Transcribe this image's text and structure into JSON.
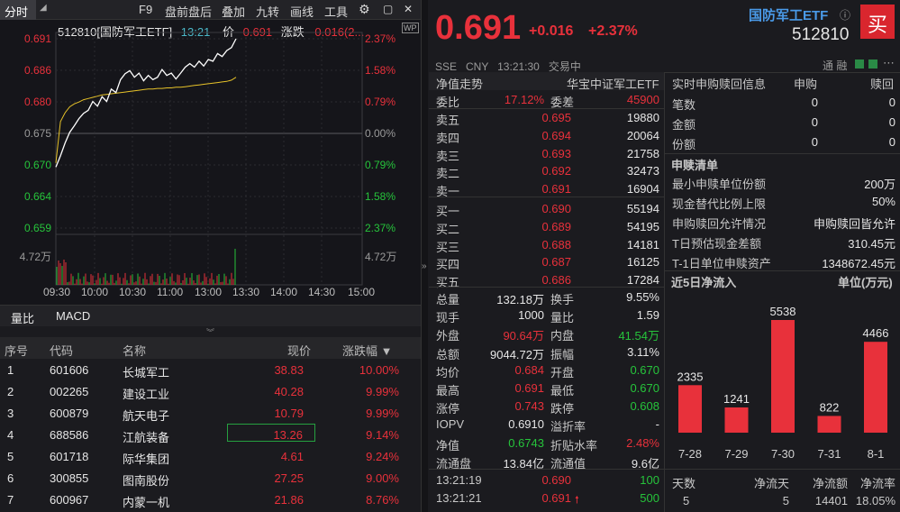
{
  "toolbar": {
    "tab": "分时",
    "f9": "F9",
    "pre_after": "盘前盘后",
    "overlay": "叠加",
    "jiuzhuan": "九转",
    "draw": "画线",
    "tools": "工具"
  },
  "chart": {
    "title": "512810[国防军工ETF]",
    "time": "13:21",
    "price_label": "价",
    "price": "0.691",
    "chg_label": "涨跌",
    "chg": "0.016(2...",
    "y_left": [
      "0.691",
      "0.686",
      "0.680",
      "0.675",
      "0.670",
      "0.664",
      "0.659"
    ],
    "y_right": [
      "2.37%",
      "1.58%",
      "0.79%",
      "0.00%",
      "0.79%",
      "1.58%",
      "2.37%"
    ],
    "vol_left": "4.72万",
    "vol_right": "4.72万",
    "x_ticks": [
      "09:30",
      "10:00",
      "10:30",
      "11:00",
      "13:00",
      "13:30",
      "14:00",
      "14:30",
      "15:00"
    ],
    "price_series": [
      0.6693,
      0.6712,
      0.6734,
      0.6752,
      0.6763,
      0.6775,
      0.6784,
      0.6789,
      0.6804,
      0.6796,
      0.6812,
      0.6804,
      0.6825,
      0.6819,
      0.6841,
      0.6851,
      0.6856,
      0.6845,
      0.6852,
      0.6839,
      0.6848,
      0.6841,
      0.6845,
      0.6858,
      0.6848,
      0.6852,
      0.6842,
      0.6852,
      0.6862,
      0.6868,
      0.6862,
      0.6872,
      0.6864,
      0.6875,
      0.6872,
      0.6885,
      0.688,
      0.689,
      0.6895,
      0.691
    ],
    "avg_series": [
      0.67,
      0.677,
      0.6785,
      0.6795,
      0.68,
      0.6803,
      0.6807,
      0.6809,
      0.6811,
      0.6813,
      0.6815,
      0.6816,
      0.6817,
      0.6818,
      0.6819,
      0.682,
      0.6821,
      0.6822,
      0.6823,
      0.6824,
      0.6825,
      0.6825,
      0.6826,
      0.6826,
      0.6827,
      0.6827,
      0.6828,
      0.6828,
      0.6829,
      0.683,
      0.6831,
      0.6832,
      0.6833,
      0.6834,
      0.6835,
      0.6836,
      0.6837,
      0.6838,
      0.684,
      0.6845
    ]
  },
  "indicators": {
    "tab1": "量比",
    "tab2": "MACD"
  },
  "stocks": {
    "headers": [
      "序号",
      "代码",
      "名称",
      "现价",
      "涨跌幅 ▼"
    ],
    "rows": [
      [
        "1",
        "601606",
        "长城军工",
        "38.83",
        "10.00%"
      ],
      [
        "2",
        "002265",
        "建设工业",
        "40.28",
        "9.99%"
      ],
      [
        "3",
        "600879",
        "航天电子",
        "10.79",
        "9.99%"
      ],
      [
        "4",
        "688586",
        "江航装备",
        "13.26",
        "9.14%"
      ],
      [
        "5",
        "601718",
        "际华集团",
        "4.61",
        "9.24%"
      ],
      [
        "6",
        "300855",
        "图南股份",
        "27.25",
        "9.00%"
      ],
      [
        "7",
        "600967",
        "内蒙一机",
        "21.86",
        "8.76%"
      ]
    ]
  },
  "quote": {
    "price": "0.691",
    "change": "+0.016",
    "pct": "+2.37%",
    "name": "国防军工ETF",
    "code": "512810",
    "buy_badge": "买",
    "meta": "SSE   CNY   13:21:30   交易中",
    "icons_label": "通 融"
  },
  "orderbook": {
    "netvalue_label": "净值走势",
    "index_label": "华宝中证军工ETF",
    "weibi_label": "委比",
    "weibi": "17.12%",
    "weicha_label": "委差",
    "weicha": "45900",
    "sells": [
      [
        "卖五",
        "0.695",
        "19880"
      ],
      [
        "卖四",
        "0.694",
        "20064"
      ],
      [
        "卖三",
        "0.693",
        "21758"
      ],
      [
        "卖二",
        "0.692",
        "32473"
      ],
      [
        "卖一",
        "0.691",
        "16904"
      ]
    ],
    "buys": [
      [
        "买一",
        "0.690",
        "55194"
      ],
      [
        "买二",
        "0.689",
        "54195"
      ],
      [
        "买三",
        "0.688",
        "14181"
      ],
      [
        "买四",
        "0.687",
        "16125"
      ],
      [
        "买五",
        "0.686",
        "17284"
      ]
    ]
  },
  "stats": [
    [
      "总量",
      "132.18万",
      "换手",
      "9.55%"
    ],
    [
      "现手",
      "1000",
      "量比",
      "1.59"
    ],
    [
      "外盘",
      "90.64万",
      "内盘",
      "41.54万"
    ],
    [
      "总额",
      "9044.72万",
      "振幅",
      "3.11%"
    ],
    [
      "均价",
      "0.684",
      "开盘",
      "0.670"
    ],
    [
      "最高",
      "0.691",
      "最低",
      "0.670"
    ],
    [
      "涨停",
      "0.743",
      "跌停",
      "0.608"
    ],
    [
      "IOPV",
      "0.6910",
      "溢折率",
      "-"
    ],
    [
      "净值",
      "0.6743",
      "折贴水率",
      "2.48%"
    ],
    [
      "流通盘",
      "13.84亿",
      "流通值",
      "9.6亿"
    ]
  ],
  "ticks": [
    [
      "13:21:19",
      "0.690",
      "100"
    ],
    [
      "13:21:21",
      "0.691",
      "500"
    ]
  ],
  "subscribe": {
    "title": "实时申购赎回信息",
    "col1": "申购",
    "col2": "赎回",
    "rows": [
      [
        "笔数",
        "0",
        "0"
      ],
      [
        "金额",
        "0",
        "0"
      ],
      [
        "份额",
        "0",
        "0"
      ]
    ],
    "list_title": "申赎清单",
    "list": [
      [
        "最小申赎单位份额",
        "200万"
      ],
      [
        "现金替代比例上限",
        "50%"
      ],
      [
        "申购赎回允许情况",
        "申购赎回皆允许"
      ],
      [
        "T日预估现金差额",
        "310.45元"
      ],
      [
        "T-1日单位申赎资产",
        "1348672.45元"
      ]
    ]
  },
  "flow": {
    "title": "近5日净流入",
    "unit": "单位(万元)",
    "bars": [
      {
        "date": "7-28",
        "value": 2335
      },
      {
        "date": "7-29",
        "value": 1241
      },
      {
        "date": "7-30",
        "value": 5538
      },
      {
        "date": "7-31",
        "value": 822
      },
      {
        "date": "8-1",
        "value": 4466
      }
    ],
    "footer_headers": [
      "天数",
      "净流天",
      "净流额",
      "净流率"
    ],
    "footer_values": [
      "5",
      "5",
      "14401",
      "18.05%"
    ]
  },
  "chart_data": {
    "type": "bar",
    "categories": [
      "7-28",
      "7-29",
      "7-30",
      "7-31",
      "8-1"
    ],
    "values": [
      2335,
      1241,
      5538,
      822,
      4466
    ],
    "title": "近5日净流入",
    "ylabel": "单位(万元)"
  }
}
